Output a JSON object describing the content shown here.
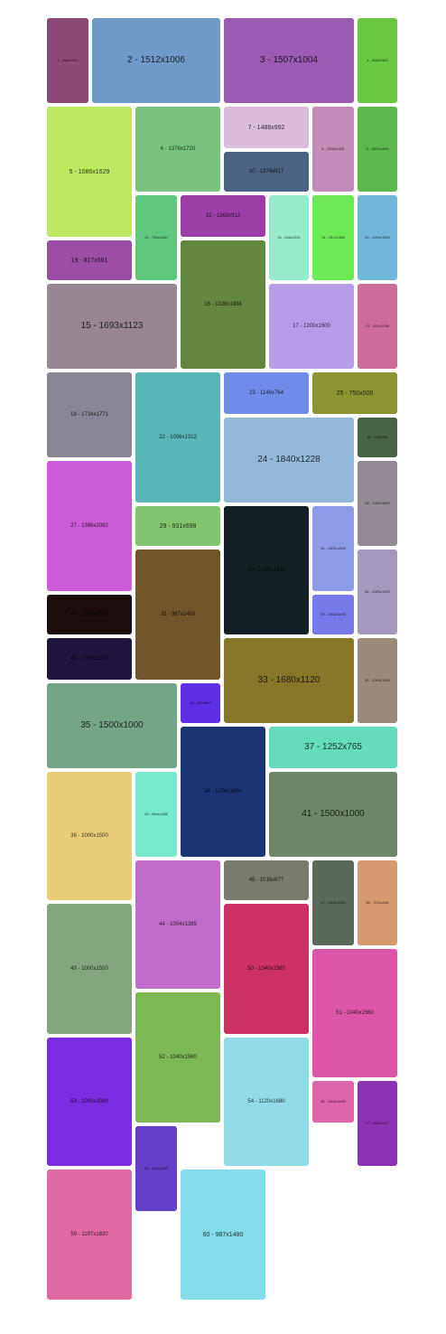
{
  "gallery": {
    "tiles": [
      {
        "label": "1 - 958x1000",
        "color": "#8e4a77"
      },
      {
        "label": "2 - 1512x1006",
        "color": "#6f99c6"
      },
      {
        "label": "3 - 1507x1004",
        "color": "#9b5bb3"
      },
      {
        "label": "4 - 600x1500",
        "color": "#68c842"
      },
      {
        "label": "5 - 1086x1629",
        "color": "#bce862"
      },
      {
        "label": "6 - 1376x1720",
        "color": "#78c47d"
      },
      {
        "label": "7 - 1488x992",
        "color": "#dbbcdc"
      },
      {
        "label": "8 - 1000x1331",
        "color": "#c48ab8"
      },
      {
        "label": "9 - 1000x1500",
        "color": "#5bb84a"
      },
      {
        "label": "10 - 1374x917",
        "color": "#4a6283"
      },
      {
        "label": "11 - 708x1060",
        "color": "#5ec77c"
      },
      {
        "label": "12 - 1368x912",
        "color": "#9c3ea6"
      },
      {
        "label": "13 - 836x1291",
        "color": "#96ebcb"
      },
      {
        "label": "14 - 912x1368",
        "color": "#6de857"
      },
      {
        "label": "15 - 1693x1123",
        "color": "#958692"
      },
      {
        "label": "16 - 1326x1988",
        "color": "#638640"
      },
      {
        "label": "17 - 1200x1500",
        "color": "#b59de8"
      },
      {
        "label": "18 - 1734x1771",
        "color": "#898592"
      },
      {
        "label": "19 - 817x561",
        "color": "#9b4fa4"
      },
      {
        "label": "20 - 1000x1500",
        "color": "#71b7d9"
      },
      {
        "label": "21 - 931x1398",
        "color": "#cd6b99"
      },
      {
        "label": "22 - 1006x1312",
        "color": "#57b7b8"
      },
      {
        "label": "23 - 1146x764",
        "color": "#6f8de8"
      },
      {
        "label": "24 - 1840x1228",
        "color": "#93b8da"
      },
      {
        "label": "25 - 750x500",
        "color": "#8c9532"
      },
      {
        "label": "26 - 700x700",
        "color": "#466544"
      },
      {
        "label": "27 - 1396x2092",
        "color": "#cb5bd6"
      },
      {
        "label": "28 - 1000x1500",
        "color": "#948a96"
      },
      {
        "label": "29 - 931x698",
        "color": "#83c56e"
      },
      {
        "label": "30 - 1000x1500",
        "color": "#142023"
      },
      {
        "label": "31 - 1000x1500",
        "color": "#8c9ae8"
      },
      {
        "label": "32 - 987x1450",
        "color": "#72552a"
      },
      {
        "label": "33 - 1680x1120",
        "color": "#877829"
      },
      {
        "label": "34 - 1000x1500",
        "color": "#a498be"
      },
      {
        "label": "35 - 1500x1000",
        "color": "#74a587"
      },
      {
        "label": "36 - 1078x1600",
        "color": "#193574"
      },
      {
        "label": "37 - 1252x765",
        "color": "#66dbbb"
      },
      {
        "label": "38 - 1000x1500",
        "color": "#e8cc77"
      },
      {
        "label": "39 - 1000x1000",
        "color": "#7879e8"
      },
      {
        "label": "40 - 984x1286",
        "color": "#76e9cc"
      },
      {
        "label": "41 - 1500x1000",
        "color": "#6e8669"
      },
      {
        "label": "42 - 1000x1500",
        "color": "#998a79"
      },
      {
        "label": "43 - 1000x1500",
        "color": "#1d0e0e"
      },
      {
        "label": "44 - 1004x1385",
        "color": "#c06dc9"
      },
      {
        "label": "45 - 1016x677",
        "color": "#7a7b6f"
      },
      {
        "label": "46 - 1000x1500",
        "color": "#1f1540"
      },
      {
        "label": "47 - 1000x1500",
        "color": "#5b695b"
      },
      {
        "label": "48 - 800x800",
        "color": "#5d30e8"
      },
      {
        "label": "49 - 1000x1500",
        "color": "#82a77c"
      },
      {
        "label": "50 - 1040x1560",
        "color": "#cc3264"
      },
      {
        "label": "51 - 1040x1560",
        "color": "#dc55a8"
      },
      {
        "label": "52 - 1040x1560",
        "color": "#7cb853"
      },
      {
        "label": "53 - 1000x1500",
        "color": "#7a2ee0"
      },
      {
        "label": "54 - 1120x1680",
        "color": "#91dbe9"
      },
      {
        "label": "55 - 700x1084",
        "color": "#d59a6e"
      },
      {
        "label": "56 - 1000x1000",
        "color": "#dc64a8"
      },
      {
        "label": "57 - 640x1417",
        "color": "#8b33b3"
      },
      {
        "label": "58 - 813x1383",
        "color": "#6440c8"
      },
      {
        "label": "59 - 1197x1820",
        "color": "#e06ba3"
      },
      {
        "label": "60 - 987x1480",
        "color": "#84dbea"
      }
    ]
  }
}
